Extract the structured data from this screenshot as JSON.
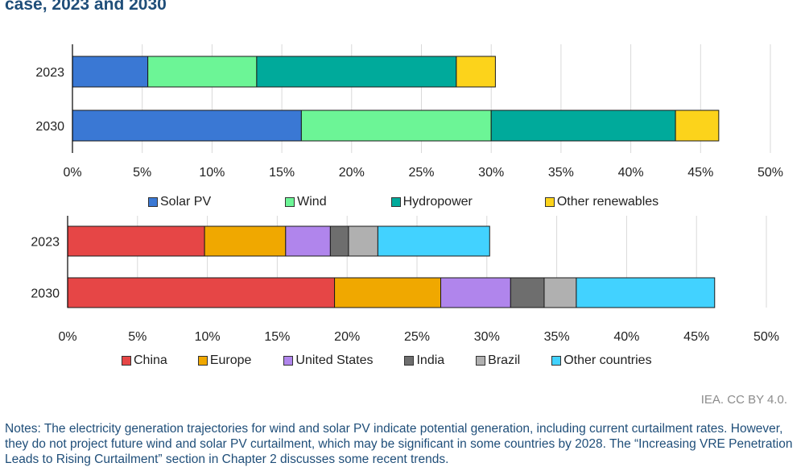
{
  "title": "case, 2023 and 2030",
  "chart_data": [
    {
      "type": "bar",
      "orientation": "horizontal",
      "stacked": true,
      "categories": [
        "2023",
        "2030"
      ],
      "xlim": [
        0,
        50
      ],
      "xticks": [
        "0%",
        "5%",
        "10%",
        "15%",
        "20%",
        "25%",
        "30%",
        "35%",
        "40%",
        "45%",
        "50%"
      ],
      "grid": true,
      "legend_position": "bottom",
      "series": [
        {
          "name": "Solar PV",
          "color": "#3a78d4",
          "values": [
            5.4,
            16.4
          ]
        },
        {
          "name": "Wind",
          "color": "#6cf596",
          "values": [
            7.8,
            13.6
          ]
        },
        {
          "name": "Hydropower",
          "color": "#00aa9b",
          "values": [
            14.3,
            13.2
          ]
        },
        {
          "name": "Other renewables",
          "color": "#fcd31b",
          "values": [
            2.8,
            3.1
          ]
        }
      ]
    },
    {
      "type": "bar",
      "orientation": "horizontal",
      "stacked": true,
      "categories": [
        "2023",
        "2030"
      ],
      "xlim": [
        0,
        50
      ],
      "xticks": [
        "0%",
        "5%",
        "10%",
        "15%",
        "20%",
        "25%",
        "30%",
        "35%",
        "40%",
        "45%",
        "50%"
      ],
      "grid": true,
      "legend_position": "bottom",
      "series": [
        {
          "name": "China",
          "color": "#e64646",
          "values": [
            9.8,
            19.1
          ]
        },
        {
          "name": "Europe",
          "color": "#f0a800",
          "values": [
            5.8,
            7.6
          ]
        },
        {
          "name": "United States",
          "color": "#b085ec",
          "values": [
            3.2,
            5.0
          ]
        },
        {
          "name": "India",
          "color": "#6e6e6e",
          "values": [
            1.3,
            2.4
          ]
        },
        {
          "name": "Brazil",
          "color": "#b0b0b0",
          "values": [
            2.1,
            2.3
          ]
        },
        {
          "name": "Other countries",
          "color": "#42d2ff",
          "values": [
            8.0,
            9.9
          ]
        }
      ]
    }
  ],
  "credit": "IEA. CC BY 4.0.",
  "notes": "Notes: The electricity generation trajectories for wind and solar PV indicate potential generation, including current curtailment rates. However, they do not project future wind and solar PV curtailment, which may be significant in some countries by 2028. The “Increasing VRE Penetration Leads to Rising Curtailment” section in Chapter 2 discusses some recent trends."
}
